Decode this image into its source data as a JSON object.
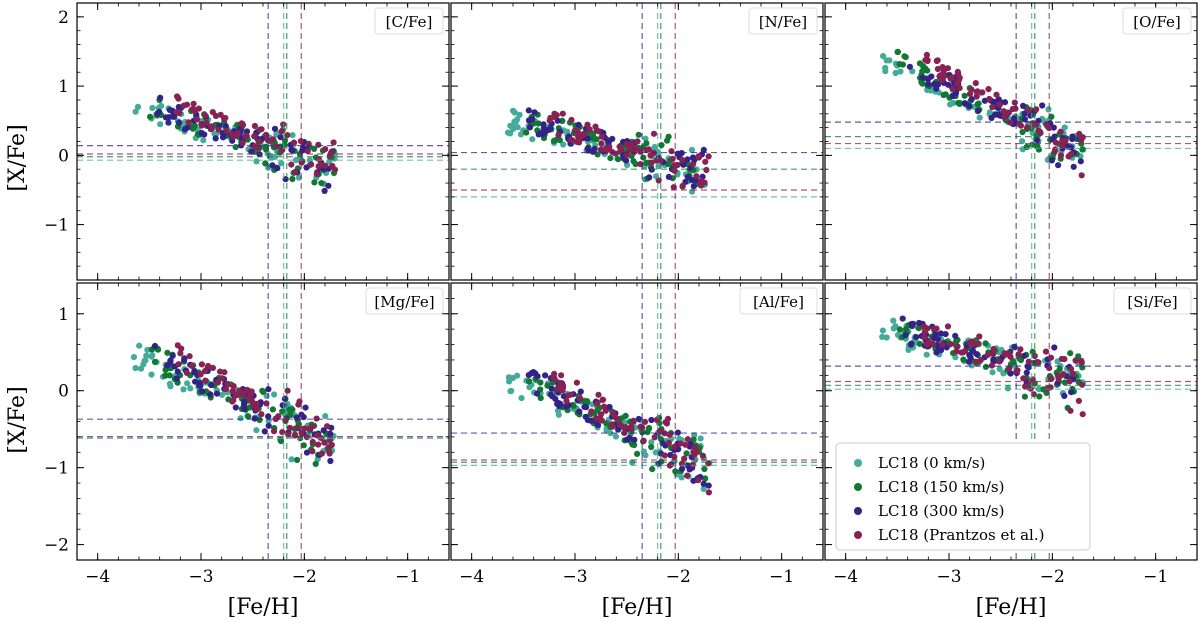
{
  "chart_data": {
    "type": "scatter",
    "xlabel": "[Fe/H]",
    "ylabel": "[X/Fe]",
    "xlim": [
      -4.2,
      -0.6
    ],
    "x_ticks": [
      -4,
      -3,
      -2,
      -1
    ],
    "x_tick_labels": [
      "−4",
      "−3",
      "−2",
      "−1"
    ],
    "rows": [
      {
        "ylim": [
          -1.8,
          2.2
        ],
        "y_ticks": [
          -1,
          0,
          1,
          2
        ],
        "y_tick_labels": [
          "−1",
          "0",
          "1",
          "2"
        ]
      },
      {
        "ylim": [
          -2.2,
          1.4
        ],
        "y_ticks": [
          -2,
          -1,
          0,
          1
        ],
        "y_tick_labels": [
          "−2",
          "−1",
          "0",
          "1"
        ]
      }
    ],
    "series": [
      {
        "name": "LC18 (0 km/s)",
        "color": "#44aa99",
        "feh_ref": -2.2
      },
      {
        "name": "LC18 (150 km/s)",
        "color": "#117733",
        "feh_ref": -2.17
      },
      {
        "name": "LC18 (300 km/s)",
        "color": "#332288",
        "feh_ref": -2.35
      },
      {
        "name": "LC18 (Prantzos et al.)",
        "color": "#882255",
        "feh_ref": -2.03
      }
    ],
    "panels": [
      {
        "label": "[C/Fe]",
        "row": 0,
        "col": 0,
        "hlines": [
          -0.07,
          -0.02,
          0.14,
          0.02
        ],
        "trend": [
          0.7,
          -0.2
        ]
      },
      {
        "label": "[N/Fe]",
        "row": 0,
        "col": 1,
        "hlines": [
          -0.6,
          -0.2,
          0.04,
          -0.5
        ],
        "trend": [
          0.5,
          -0.3
        ]
      },
      {
        "label": "[O/Fe]",
        "row": 0,
        "col": 2,
        "hlines": [
          0.1,
          0.27,
          0.48,
          0.17
        ],
        "trend": [
          1.35,
          0.05
        ]
      },
      {
        "label": "[Mg/Fe]",
        "row": 1,
        "col": 0,
        "hlines": [
          -0.62,
          -0.6,
          -0.37,
          -0.6
        ],
        "trend": [
          0.45,
          -0.75
        ]
      },
      {
        "label": "[Al/Fe]",
        "row": 1,
        "col": 1,
        "hlines": [
          -0.97,
          -0.93,
          -0.55,
          -0.9
        ],
        "trend": [
          0.15,
          -1.0
        ]
      },
      {
        "label": "[Si/Fe]",
        "row": 1,
        "col": 2,
        "hlines": [
          0.02,
          0.07,
          0.32,
          0.12
        ],
        "trend": [
          0.78,
          0.08
        ]
      }
    ],
    "legend": {
      "position": "lower-right",
      "panel": "[Si/Fe]"
    }
  }
}
